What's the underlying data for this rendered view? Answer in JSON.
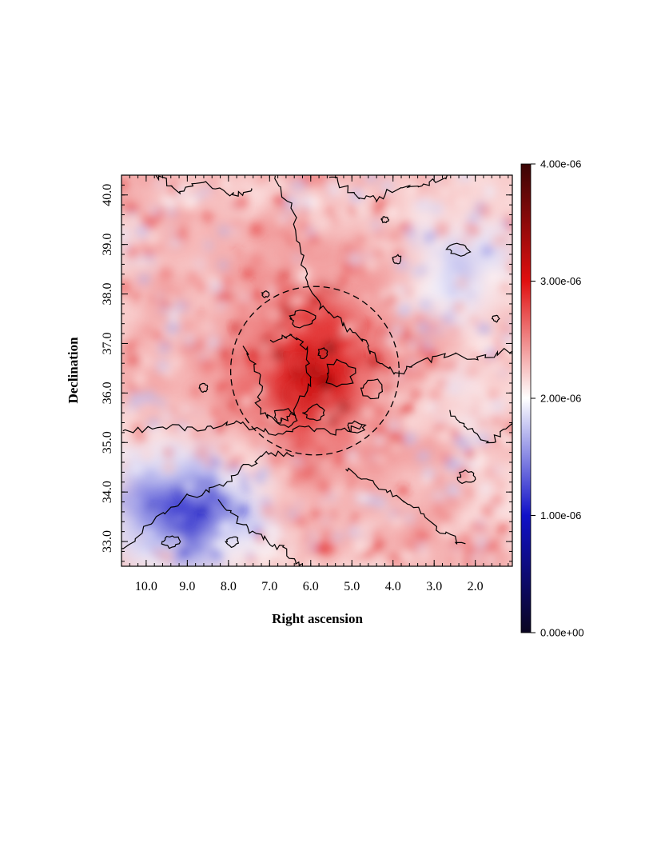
{
  "chart_data": {
    "type": "heatmap",
    "xlabel": "Right ascension",
    "ylabel": "Declination",
    "x_ticks": [
      "10.0",
      "9.0",
      "8.0",
      "7.0",
      "6.0",
      "5.0",
      "4.0",
      "3.0",
      "2.0"
    ],
    "y_ticks": [
      "33.0",
      "34.0",
      "35.0",
      "36.0",
      "37.0",
      "38.0",
      "39.0",
      "40.0"
    ],
    "xlim": [
      10.6,
      1.1
    ],
    "ylim": [
      32.5,
      40.4
    ],
    "x_reversed": true,
    "colorbar": {
      "range": [
        0,
        4e-06
      ],
      "ticks": [
        "4.00e-06",
        "3.00e-06",
        "2.00e-06",
        "1.00e-06",
        "0.00e+00"
      ],
      "colormap": [
        "#0a0520",
        "#1010c8",
        "#ffffff",
        "#e01010",
        "#3a0505"
      ],
      "position": "right"
    },
    "features": [
      {
        "kind": "dashed-circle",
        "center_ra": 5.9,
        "center_dec": 36.45,
        "radius_deg": 2.0
      },
      {
        "kind": "enhanced-ring",
        "center_ra": 5.9,
        "center_dec": 36.45,
        "level": 3e-06
      },
      {
        "kind": "low-region",
        "center_ra": 9.0,
        "center_dec": 33.6,
        "level": 1e-06
      }
    ],
    "contour_color": "#000000"
  }
}
